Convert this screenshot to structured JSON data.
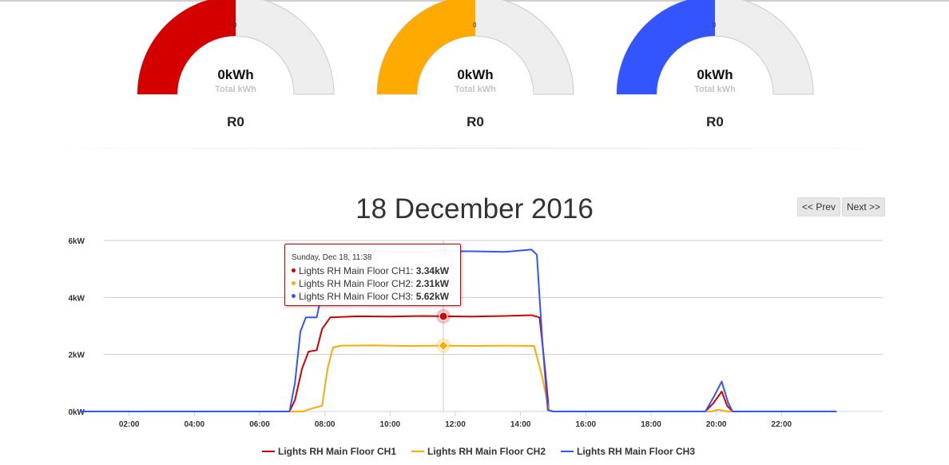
{
  "gauges": [
    {
      "value_label": "0kWh",
      "sub_label": "Total kWh",
      "name_label": "R0",
      "zero_label": "0",
      "color": "#d40000",
      "fill_fraction": 0.5
    },
    {
      "value_label": "0kWh",
      "sub_label": "Total kWh",
      "name_label": "R0",
      "zero_label": "0",
      "color": "#ffaa00",
      "fill_fraction": 0.5
    },
    {
      "value_label": "0kWh",
      "sub_label": "Total kWh",
      "name_label": "R0",
      "zero_label": "0",
      "color": "#3355ff",
      "fill_fraction": 0.5
    }
  ],
  "nav": {
    "prev_label": "<< Prev",
    "next_label": "Next >>"
  },
  "tooltip": {
    "header": "Sunday, Dec 18, 11:38",
    "rows": [
      {
        "label": "Lights RH Main Floor CH1:",
        "value": "3.34kW",
        "color": "#d40000"
      },
      {
        "label": "Lights RH Main Floor CH2:",
        "value": "2.31kW",
        "color": "#ffaa00"
      },
      {
        "label": "Lights RH Main Floor CH3:",
        "value": "5.62kW",
        "color": "#3355ff"
      }
    ]
  },
  "chart_data": {
    "type": "line",
    "title": "18 December 2016",
    "xlabel": "",
    "ylabel": "",
    "xlim": [
      "00:00",
      "24:00"
    ],
    "ylim": [
      0,
      6
    ],
    "x_ticks": [
      "02:00",
      "04:00",
      "06:00",
      "08:00",
      "10:00",
      "12:00",
      "14:00",
      "16:00",
      "18:00",
      "20:00",
      "22:00"
    ],
    "y_ticks": [
      "0kW",
      "2kW",
      "4kW",
      "6kW"
    ],
    "grid": true,
    "legend_position": "bottom-center",
    "crosshair_x": "11:38",
    "series": [
      {
        "name": "Lights RH Main Floor CH1",
        "color": "#d40000",
        "points": [
          [
            "00:30",
            0
          ],
          [
            "06:55",
            0
          ],
          [
            "07:05",
            0.4
          ],
          [
            "07:18",
            1.5
          ],
          [
            "07:30",
            2.1
          ],
          [
            "07:45",
            2.15
          ],
          [
            "07:55",
            2.9
          ],
          [
            "08:10",
            3.3
          ],
          [
            "09:00",
            3.34
          ],
          [
            "10:00",
            3.33
          ],
          [
            "11:00",
            3.35
          ],
          [
            "11:38",
            3.34
          ],
          [
            "12:30",
            3.33
          ],
          [
            "13:30",
            3.35
          ],
          [
            "14:20",
            3.38
          ],
          [
            "14:35",
            3.3
          ],
          [
            "14:45",
            1.5
          ],
          [
            "14:52",
            0.05
          ],
          [
            "15:00",
            0
          ],
          [
            "19:40",
            0
          ],
          [
            "19:55",
            0.3
          ],
          [
            "20:10",
            0.7
          ],
          [
            "20:20",
            0.2
          ],
          [
            "20:30",
            0
          ],
          [
            "23:40",
            0
          ]
        ]
      },
      {
        "name": "Lights RH Main Floor CH2",
        "color": "#ffaa00",
        "points": [
          [
            "00:30",
            0
          ],
          [
            "07:20",
            0
          ],
          [
            "07:35",
            0.1
          ],
          [
            "07:55",
            0.2
          ],
          [
            "08:05",
            1.5
          ],
          [
            "08:15",
            2.25
          ],
          [
            "08:30",
            2.31
          ],
          [
            "09:30",
            2.32
          ],
          [
            "10:30",
            2.3
          ],
          [
            "11:38",
            2.31
          ],
          [
            "12:30",
            2.3
          ],
          [
            "13:30",
            2.31
          ],
          [
            "14:25",
            2.3
          ],
          [
            "14:40",
            1.2
          ],
          [
            "14:52",
            0.05
          ],
          [
            "15:00",
            0
          ],
          [
            "19:50",
            0
          ],
          [
            "20:05",
            0.06
          ],
          [
            "20:20",
            0
          ],
          [
            "23:40",
            0
          ]
        ]
      },
      {
        "name": "Lights RH Main Floor CH3",
        "color": "#3355ff",
        "points": [
          [
            "00:30",
            0
          ],
          [
            "06:55",
            0
          ],
          [
            "07:05",
            1.0
          ],
          [
            "07:15",
            2.8
          ],
          [
            "07:25",
            3.3
          ],
          [
            "07:45",
            3.3
          ],
          [
            "07:55",
            4.2
          ],
          [
            "08:15",
            5.2
          ],
          [
            "08:40",
            5.6
          ],
          [
            "09:30",
            5.62
          ],
          [
            "10:30",
            5.6
          ],
          [
            "11:38",
            5.62
          ],
          [
            "12:30",
            5.62
          ],
          [
            "13:30",
            5.6
          ],
          [
            "14:20",
            5.68
          ],
          [
            "14:30",
            5.5
          ],
          [
            "14:40",
            2.5
          ],
          [
            "14:50",
            0.05
          ],
          [
            "15:00",
            0
          ],
          [
            "19:40",
            0
          ],
          [
            "19:55",
            0.5
          ],
          [
            "20:10",
            1.05
          ],
          [
            "20:22",
            0.3
          ],
          [
            "20:30",
            0
          ],
          [
            "23:40",
            0
          ]
        ]
      }
    ]
  }
}
